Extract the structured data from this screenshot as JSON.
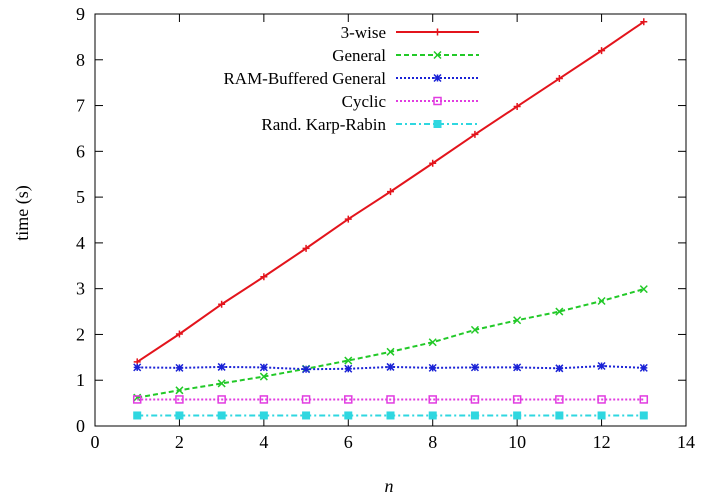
{
  "chart_data": {
    "type": "line",
    "xlabel": "n",
    "ylabel": "time (s)",
    "xlim": [
      0,
      14
    ],
    "ylim": [
      0,
      9
    ],
    "xticks": [
      0,
      2,
      4,
      6,
      8,
      10,
      12,
      14
    ],
    "yticks": [
      0,
      1,
      2,
      3,
      4,
      5,
      6,
      7,
      8,
      9
    ],
    "grid": false,
    "legend_position": "top-right",
    "x": [
      1,
      2,
      3,
      4,
      5,
      6,
      7,
      8,
      9,
      10,
      11,
      12,
      13
    ],
    "series": [
      {
        "name": "3-wise",
        "color": "#e3141c",
        "line_style": "solid",
        "marker": "plus",
        "values": [
          1.4,
          2.01,
          2.66,
          3.26,
          3.88,
          4.52,
          5.12,
          5.74,
          6.37,
          6.98,
          7.59,
          8.2,
          8.83
        ]
      },
      {
        "name": "General",
        "color": "#22c928",
        "line_style": "dashed",
        "marker": "cross",
        "values": [
          0.62,
          0.78,
          0.93,
          1.08,
          1.25,
          1.43,
          1.62,
          1.83,
          2.1,
          2.31,
          2.5,
          2.73,
          2.99
        ]
      },
      {
        "name": "RAM-Buffered General",
        "color": "#1a22d6",
        "line_style": "dotted",
        "marker": "asterisk",
        "values": [
          1.28,
          1.27,
          1.29,
          1.28,
          1.24,
          1.25,
          1.29,
          1.27,
          1.28,
          1.28,
          1.26,
          1.31,
          1.27
        ]
      },
      {
        "name": "Cyclic",
        "color": "#e13ce0",
        "line_style": "dotted",
        "marker": "square",
        "values": [
          0.58,
          0.58,
          0.58,
          0.58,
          0.58,
          0.58,
          0.58,
          0.58,
          0.58,
          0.58,
          0.58,
          0.58,
          0.58
        ]
      },
      {
        "name": "Rand. Karp-Rabin",
        "color": "#2fd7e0",
        "line_style": "dashdot",
        "marker": "filled-square",
        "values": [
          0.23,
          0.23,
          0.23,
          0.23,
          0.23,
          0.23,
          0.23,
          0.23,
          0.23,
          0.23,
          0.23,
          0.23,
          0.23
        ]
      }
    ]
  }
}
